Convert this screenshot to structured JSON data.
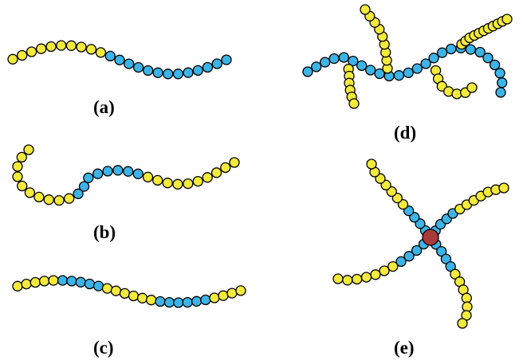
{
  "colors": {
    "block_a": "#f4ea3c",
    "block_b": "#3cb4e8",
    "core": "#a83a3a",
    "outline": "#000000"
  },
  "panels": [
    {
      "id": "a",
      "label": "(a)",
      "segments": [
        [
          "A",
          10
        ],
        [
          "B",
          13
        ]
      ]
    },
    {
      "id": "b",
      "label": "(b)",
      "segments": [
        [
          "A",
          10
        ],
        [
          "B",
          8
        ],
        [
          "A",
          10
        ]
      ]
    },
    {
      "id": "c",
      "label": "(c)",
      "segments": [
        [
          "A",
          5
        ],
        [
          "B",
          5
        ],
        [
          "A",
          6
        ],
        [
          "B",
          6
        ],
        [
          "A",
          4
        ]
      ]
    },
    {
      "id": "d",
      "label": "(d)",
      "backbone": [
        "B",
        25
      ],
      "grafts": [
        [
          "A",
          9
        ],
        [
          "A",
          6
        ],
        [
          "A",
          7
        ],
        [
          "A",
          11
        ]
      ]
    },
    {
      "id": "e",
      "label": "(e)",
      "arms": [
        [
          [
            "B",
            4
          ],
          [
            "A",
            7
          ]
        ],
        [
          [
            "B",
            4
          ],
          [
            "A",
            7
          ]
        ],
        [
          [
            "B",
            4
          ],
          [
            "A",
            7
          ]
        ],
        [
          [
            "B",
            4
          ],
          [
            "A",
            7
          ]
        ]
      ]
    }
  ]
}
